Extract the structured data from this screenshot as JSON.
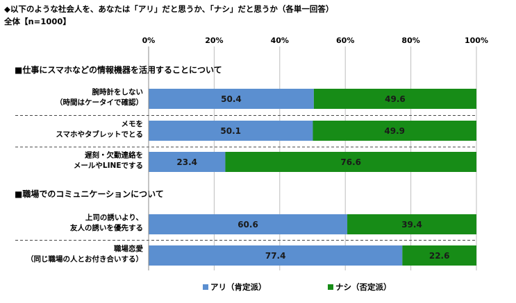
{
  "header": {
    "title": "◆以下のような社会人を、あなたは「アリ」だと思うか、「ナシ」だと思うか（各単一回答）",
    "subtitle": "全体【n=1000】"
  },
  "chart_data": {
    "type": "bar",
    "orientation": "horizontal-stacked-100",
    "xlim": [
      0,
      100
    ],
    "x_ticks": [
      "0%",
      "20%",
      "40%",
      "60%",
      "80%",
      "100%"
    ],
    "sections": [
      {
        "title": "■仕事にスマホなどの情報機器を活用することについて",
        "categories": [
          [
            "腕時計をしない",
            "（時間はケータイで確認）"
          ],
          [
            "メモを",
            "スマホやタブレットでとる"
          ],
          [
            "遅刻・欠勤連絡を",
            "メールやLINEでする"
          ]
        ],
        "series": [
          {
            "name": "アリ（肯定派）",
            "values": [
              50.4,
              50.1,
              23.4
            ]
          },
          {
            "name": "ナシ（否定派）",
            "values": [
              49.6,
              49.9,
              76.6
            ]
          }
        ]
      },
      {
        "title": "■職場でのコミュニケーションについて",
        "categories": [
          [
            "上司の誘いより、",
            "友人の誘いを優先する"
          ],
          [
            "職場恋愛",
            "（同じ職場の人とお付き合いする）"
          ]
        ],
        "series": [
          {
            "name": "アリ（肯定派）",
            "values": [
              60.6,
              77.4
            ]
          },
          {
            "name": "ナシ（否定派）",
            "values": [
              39.4,
              22.6
            ]
          }
        ]
      }
    ],
    "colors": {
      "ari": "#5b8fd0",
      "nashi": "#178c17"
    },
    "legend": {
      "placement": "bottom",
      "items": [
        {
          "label": "アリ（肯定派）",
          "color_key": "ari"
        },
        {
          "label": "ナシ（否定派）",
          "color_key": "nashi"
        }
      ]
    }
  }
}
